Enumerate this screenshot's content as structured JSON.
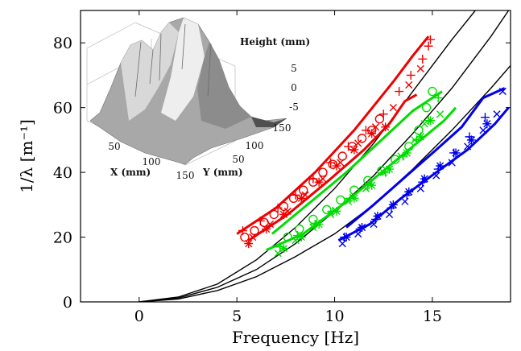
{
  "chart_data": {
    "type": "scatter",
    "title": "",
    "xlabel": "Frequency [Hz]",
    "ylabel": "1/λ [m⁻¹]",
    "xlim": [
      -3,
      19
    ],
    "ylim": [
      0,
      90
    ],
    "xticks": [
      0,
      5,
      10,
      15
    ],
    "yticks": [
      0,
      20,
      40,
      60,
      80
    ],
    "grid": false,
    "legend": "none",
    "colors": {
      "red": "#ee0000",
      "green": "#00dd00",
      "blue": "#0000ee",
      "theory": "#000000"
    },
    "theory_curves": [
      {
        "points": [
          [
            0,
            0
          ],
          [
            2,
            1.5
          ],
          [
            4,
            5.5
          ],
          [
            6,
            13
          ],
          [
            8,
            23
          ],
          [
            10,
            35
          ],
          [
            12,
            49
          ],
          [
            14,
            65
          ],
          [
            16,
            81
          ],
          [
            17.2,
            90
          ]
        ]
      },
      {
        "points": [
          [
            0,
            0
          ],
          [
            2,
            1.2
          ],
          [
            4,
            4.5
          ],
          [
            6,
            10
          ],
          [
            8,
            18
          ],
          [
            10,
            28
          ],
          [
            12,
            39
          ],
          [
            14,
            52
          ],
          [
            16,
            66
          ],
          [
            18,
            82
          ],
          [
            18.9,
            90
          ]
        ]
      },
      {
        "points": [
          [
            0,
            0
          ],
          [
            2,
            0.9
          ],
          [
            4,
            3.5
          ],
          [
            6,
            7.8
          ],
          [
            8,
            14
          ],
          [
            10,
            21
          ],
          [
            12,
            30
          ],
          [
            14,
            41
          ],
          [
            16,
            53
          ],
          [
            18,
            66
          ],
          [
            19,
            73
          ]
        ]
      }
    ],
    "bands": [
      {
        "color": "red",
        "upper": [
          [
            5,
            21
          ],
          [
            7,
            29
          ],
          [
            9,
            40
          ],
          [
            11,
            53
          ],
          [
            13,
            68
          ],
          [
            14,
            76
          ],
          [
            14.8,
            82
          ]
        ],
        "lower": [
          [
            5.6,
            19
          ],
          [
            7.6,
            27
          ],
          [
            9.6,
            37
          ],
          [
            11.5,
            47
          ],
          [
            12.8,
            55
          ],
          [
            13.6,
            62
          ],
          [
            14.2,
            64
          ]
        ]
      },
      {
        "color": "green",
        "upper": [
          [
            6.8,
            21
          ],
          [
            8.6,
            30
          ],
          [
            10.6,
            40
          ],
          [
            12.4,
            50
          ],
          [
            14,
            59
          ],
          [
            15,
            63
          ],
          [
            15.5,
            65
          ]
        ],
        "lower": [
          [
            6.5,
            16
          ],
          [
            8.4,
            21
          ],
          [
            10.4,
            30
          ],
          [
            12.4,
            40
          ],
          [
            14.2,
            49
          ],
          [
            15.6,
            56
          ],
          [
            16.2,
            60
          ]
        ]
      },
      {
        "color": "blue",
        "upper": [
          [
            10.6,
            23
          ],
          [
            12,
            30
          ],
          [
            13.5,
            38
          ],
          [
            15.2,
            47
          ],
          [
            16.5,
            54
          ],
          [
            17.6,
            63
          ],
          [
            18.7,
            66
          ]
        ],
        "lower": [
          [
            10.2,
            19
          ],
          [
            11.8,
            24
          ],
          [
            13.4,
            32
          ],
          [
            15.2,
            40
          ],
          [
            16.8,
            47
          ],
          [
            18.2,
            55
          ],
          [
            18.9,
            60
          ]
        ]
      }
    ],
    "series": [
      {
        "color": "red",
        "marker": "o",
        "points": [
          [
            5.4,
            20
          ],
          [
            5.9,
            22
          ],
          [
            6.4,
            24.5
          ],
          [
            6.9,
            27
          ],
          [
            7.4,
            29.5
          ],
          [
            7.9,
            32
          ],
          [
            8.4,
            34.5
          ],
          [
            8.9,
            37
          ],
          [
            9.4,
            40
          ],
          [
            9.9,
            42.5
          ],
          [
            10.4,
            45
          ],
          [
            10.9,
            48
          ],
          [
            11.4,
            50.5
          ],
          [
            11.9,
            53
          ],
          [
            12.3,
            56.5
          ]
        ]
      },
      {
        "color": "red",
        "marker": "+",
        "points": [
          [
            5.3,
            22
          ],
          [
            6.2,
            25
          ],
          [
            7.1,
            29
          ],
          [
            8,
            33
          ],
          [
            8.9,
            38
          ],
          [
            9.8,
            43
          ],
          [
            10.7,
            48
          ],
          [
            11.6,
            53
          ],
          [
            12.5,
            58
          ],
          [
            13.3,
            65
          ],
          [
            13.9,
            70
          ],
          [
            14.5,
            75
          ],
          [
            14.8,
            79
          ],
          [
            14.9,
            81
          ]
        ]
      },
      {
        "color": "red",
        "marker": "x",
        "points": [
          [
            5.8,
            20
          ],
          [
            6.7,
            24
          ],
          [
            7.6,
            28
          ],
          [
            8.5,
            33
          ],
          [
            9.4,
            38
          ],
          [
            10.3,
            43
          ],
          [
            11.2,
            49
          ],
          [
            12.1,
            54
          ],
          [
            13,
            60
          ],
          [
            13.8,
            67
          ],
          [
            14.4,
            72
          ]
        ]
      },
      {
        "color": "red",
        "marker": "*",
        "points": [
          [
            5.6,
            18
          ],
          [
            6.5,
            22.5
          ],
          [
            7.4,
            27
          ],
          [
            8.3,
            32
          ],
          [
            9.2,
            37
          ],
          [
            10.1,
            42
          ],
          [
            11,
            47
          ],
          [
            11.9,
            52
          ],
          [
            12.6,
            54
          ]
        ]
      },
      {
        "color": "green",
        "marker": "o",
        "points": [
          [
            7.6,
            20
          ],
          [
            8.2,
            22.5
          ],
          [
            8.9,
            25.5
          ],
          [
            9.6,
            28.5
          ],
          [
            10.3,
            31.5
          ],
          [
            11,
            34.5
          ],
          [
            11.7,
            37.5
          ],
          [
            12.4,
            40.5
          ],
          [
            13.1,
            44
          ],
          [
            13.8,
            48
          ],
          [
            14.3,
            53
          ],
          [
            14.7,
            60
          ],
          [
            15,
            65
          ]
        ]
      },
      {
        "color": "green",
        "marker": "+",
        "points": [
          [
            7.2,
            17
          ],
          [
            8.1,
            20.5
          ],
          [
            9,
            24
          ],
          [
            9.9,
            28
          ],
          [
            10.8,
            32
          ],
          [
            11.7,
            36
          ],
          [
            12.6,
            40
          ],
          [
            13.5,
            45
          ],
          [
            14.2,
            50
          ],
          [
            14.8,
            56
          ],
          [
            15.3,
            63
          ]
        ]
      },
      {
        "color": "green",
        "marker": "x",
        "points": [
          [
            7.1,
            15
          ],
          [
            8,
            19
          ],
          [
            8.9,
            23
          ],
          [
            9.8,
            27
          ],
          [
            10.7,
            31
          ],
          [
            11.6,
            35
          ],
          [
            12.5,
            40
          ],
          [
            13.4,
            45
          ],
          [
            14.1,
            50
          ],
          [
            14.6,
            55
          ],
          [
            15.4,
            58
          ]
        ]
      },
      {
        "color": "green",
        "marker": "*",
        "points": [
          [
            7.4,
            16.5
          ],
          [
            8.3,
            20
          ],
          [
            9.2,
            24
          ],
          [
            10.1,
            28
          ],
          [
            11,
            32
          ],
          [
            11.9,
            36
          ],
          [
            12.8,
            41
          ],
          [
            13.7,
            46
          ],
          [
            14.4,
            51
          ],
          [
            14.9,
            56
          ]
        ]
      },
      {
        "color": "blue",
        "marker": "+",
        "points": [
          [
            10.5,
            20
          ],
          [
            11.3,
            22.5
          ],
          [
            12.1,
            25.5
          ],
          [
            12.9,
            29
          ],
          [
            13.7,
            33
          ],
          [
            14.5,
            37
          ],
          [
            15.3,
            41
          ],
          [
            16.1,
            46
          ],
          [
            16.9,
            51
          ],
          [
            17.7,
            57
          ]
        ]
      },
      {
        "color": "blue",
        "marker": "x",
        "points": [
          [
            10.4,
            18
          ],
          [
            11.2,
            21
          ],
          [
            12,
            24
          ],
          [
            12.8,
            27
          ],
          [
            13.6,
            31
          ],
          [
            14.4,
            35
          ],
          [
            15.2,
            39
          ],
          [
            16,
            43
          ],
          [
            16.8,
            48
          ],
          [
            17.6,
            53
          ],
          [
            18.3,
            58
          ],
          [
            18.6,
            65
          ]
        ]
      },
      {
        "color": "blue",
        "marker": "*",
        "points": [
          [
            10.6,
            20
          ],
          [
            11.4,
            23
          ],
          [
            12.2,
            26.5
          ],
          [
            13,
            30
          ],
          [
            13.8,
            34
          ],
          [
            14.6,
            38
          ],
          [
            15.4,
            42
          ],
          [
            16.2,
            46
          ],
          [
            17,
            50
          ],
          [
            17.8,
            55
          ]
        ]
      }
    ],
    "inset": {
      "z_label": "Height (mm)",
      "x_label": "X (mm)",
      "y_label": "Y (mm)",
      "z_ticks": [
        "5",
        "0",
        "-5"
      ],
      "x_ticks": [
        "50",
        "100",
        "150"
      ],
      "y_ticks": [
        "50",
        "100",
        "150"
      ]
    }
  }
}
